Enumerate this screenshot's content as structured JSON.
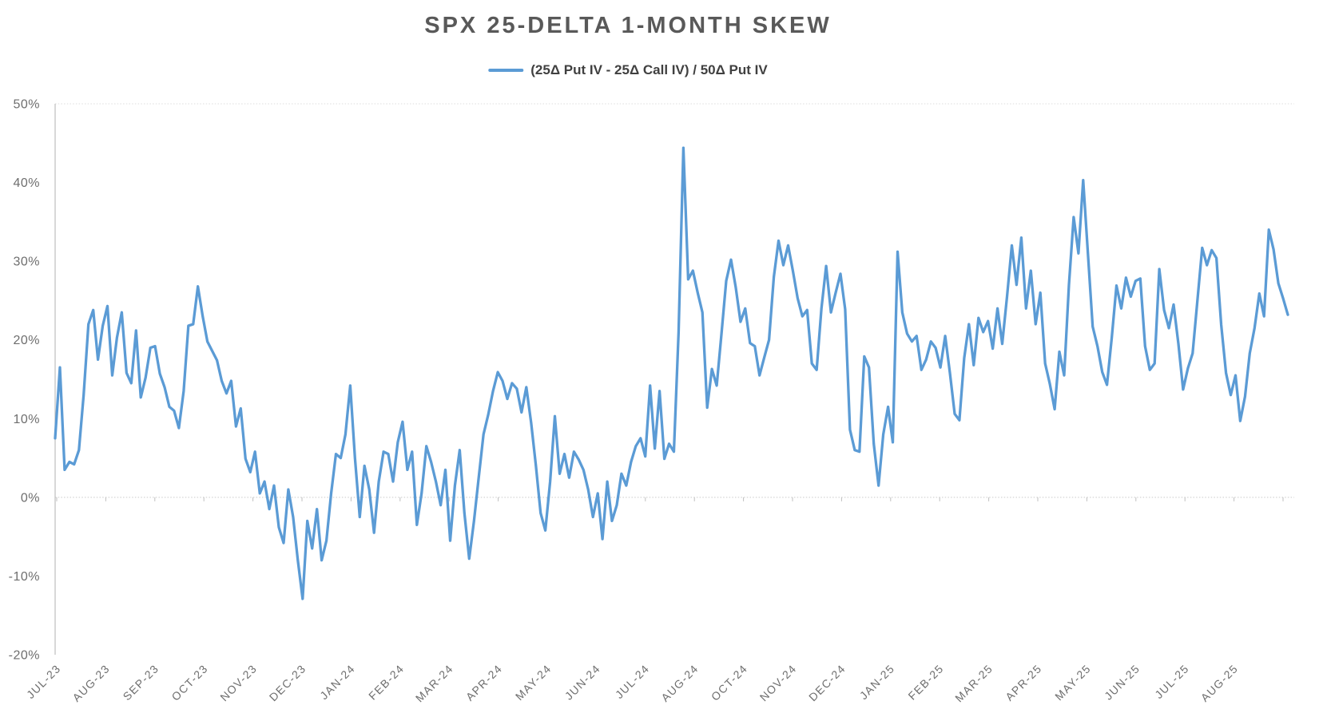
{
  "chart_data": {
    "type": "line",
    "title": "SPX 25-DELTA 1-MONTH SKEW",
    "legend_position": "top-center",
    "grid": "zero-axis line only, dotted",
    "xlabel": "",
    "ylabel": "",
    "ylim": [
      -20,
      50
    ],
    "y_tick_step": 10,
    "y_tick_labels": [
      "50%",
      "40%",
      "30%",
      "20%",
      "10%",
      "0%",
      "-10%",
      "-20%"
    ],
    "x_labels": [
      "JUL-23",
      "AUG-23",
      "SEP-23",
      "OCT-23",
      "NOV-23",
      "DEC-23",
      "JAN-24",
      "FEB-24",
      "MAR-24",
      "APR-24",
      "MAY-24",
      "JUN-24",
      "JUL-24",
      "AUG-24",
      "OCT-24",
      "NOV-24",
      "DEC-24",
      "JAN-25",
      "FEB-25",
      "MAR-25",
      "APR-25",
      "MAY-25",
      "JUN-25",
      "JUL-25",
      "AUG-25"
    ],
    "series": [
      {
        "name": "(25Δ Put IV - 25Δ Call IV) / 50Δ Put IV",
        "unit": "%",
        "values": [
          7.5,
          16.5,
          3.5,
          4.5,
          4.2,
          6.0,
          13.0,
          22.0,
          23.8,
          17.5,
          21.8,
          24.3,
          15.5,
          20.3,
          23.5,
          15.8,
          14.5,
          21.2,
          12.7,
          15.2,
          19.0,
          19.2,
          15.7,
          14.0,
          11.5,
          11.0,
          8.8,
          13.5,
          21.8,
          22.0,
          26.8,
          23.0,
          19.8,
          18.6,
          17.4,
          14.8,
          13.2,
          14.8,
          9.0,
          11.3,
          4.9,
          3.2,
          5.8,
          0.5,
          2.0,
          -1.5,
          1.5,
          -3.8,
          -5.8,
          1.0,
          -2.5,
          -8.0,
          -12.9,
          -3.0,
          -6.5,
          -1.5,
          -8.0,
          -5.5,
          0.5,
          5.5,
          5.0,
          8.0,
          14.2,
          5.0,
          -2.5,
          4.0,
          1.0,
          -4.5,
          2.0,
          5.8,
          5.5,
          2.0,
          7.0,
          9.6,
          3.5,
          5.8,
          -3.5,
          0.5,
          6.5,
          4.5,
          2.0,
          -1.0,
          3.5,
          -5.5,
          1.5,
          6.0,
          -2.0,
          -7.8,
          -3.0,
          2.5,
          8.0,
          10.5,
          13.5,
          15.9,
          14.8,
          12.5,
          14.5,
          13.8,
          10.8,
          14.0,
          9.5,
          4.1,
          -2.0,
          -4.2,
          2.0,
          10.3,
          3.0,
          5.5,
          2.5,
          5.8,
          4.8,
          3.5,
          1.0,
          -2.5,
          0.5,
          -5.3,
          2.0,
          -3.0,
          -1.0,
          3.0,
          1.5,
          4.5,
          6.5,
          7.5,
          5.2,
          14.2,
          6.2,
          13.5,
          4.9,
          6.8,
          5.8,
          21.0,
          44.4,
          27.7,
          28.8,
          26.0,
          23.5,
          11.4,
          16.3,
          14.2,
          20.8,
          27.5,
          30.2,
          26.7,
          22.3,
          24.0,
          19.6,
          19.2,
          15.5,
          17.8,
          20.0,
          28.0,
          32.6,
          29.5,
          32.0,
          28.8,
          25.3,
          23.0,
          23.8,
          17.0,
          16.2,
          24.0,
          29.4,
          23.5,
          26.0,
          28.4,
          23.9,
          8.6,
          6.0,
          5.8,
          17.9,
          16.5,
          6.8,
          1.5,
          8.0,
          11.5,
          7.0,
          31.2,
          23.5,
          20.8,
          19.8,
          20.5,
          16.2,
          17.5,
          19.8,
          19.0,
          16.5,
          20.5,
          15.8,
          10.6,
          9.8,
          17.7,
          22.0,
          16.8,
          22.8,
          21.0,
          22.4,
          18.9,
          24.0,
          19.5,
          25.5,
          32.0,
          27.0,
          33.0,
          24.0,
          28.8,
          22.0,
          26.0,
          17.0,
          14.4,
          11.2,
          18.5,
          15.5,
          27.0,
          35.6,
          31.0,
          40.3,
          30.9,
          21.7,
          19.2,
          15.9,
          14.3,
          20.3,
          26.9,
          24.0,
          27.9,
          25.5,
          27.5,
          27.8,
          19.2,
          16.2,
          17.0,
          29.0,
          23.8,
          21.5,
          24.5,
          19.5,
          13.7,
          16.4,
          18.3,
          25.0,
          31.7,
          29.5,
          31.4,
          30.4,
          21.9,
          15.8,
          13.0,
          15.5,
          9.7,
          12.8,
          18.3,
          21.5,
          25.9,
          23.0,
          34.0,
          31.5,
          27.2,
          25.3,
          23.2
        ]
      }
    ],
    "colors": {
      "line": "#5B9BD5",
      "title_text": "#595959",
      "legend_text": "#404040",
      "axis_text": "#6E6E6E",
      "axis_line": "#BFBFBF",
      "zero_line": "#C9C9C9",
      "top_border": "#DCDCDC",
      "background": "#FFFFFF"
    }
  }
}
